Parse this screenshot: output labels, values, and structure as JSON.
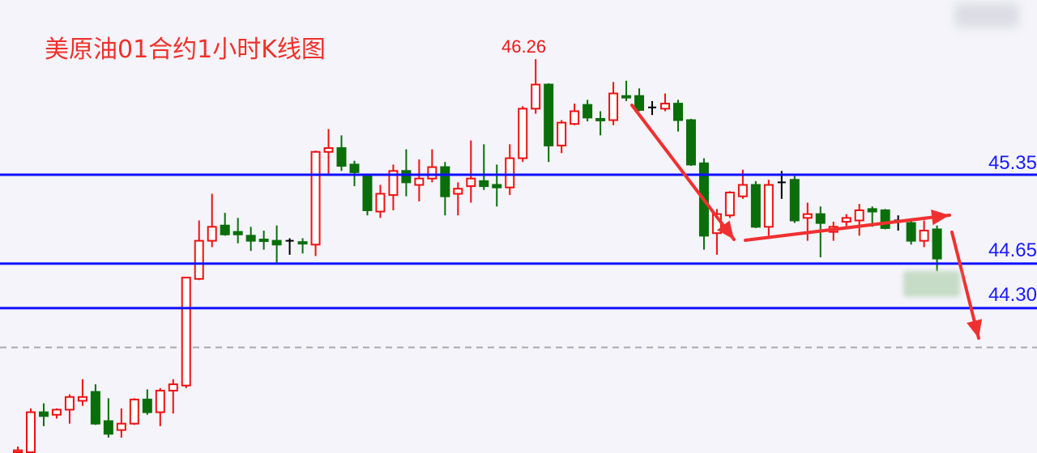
{
  "chart_data": {
    "type": "candlestick",
    "title": "美原油01合约1小时K线图",
    "annotations": {
      "high_label": "46.26"
    },
    "colors": {
      "up": "#f01010",
      "down": "#0a6e0a",
      "flat": "#000000",
      "level_line": "#1010ff",
      "arrow": "#f03030",
      "dashed_line": "#aaaaaa"
    },
    "levels": [
      {
        "value": 45.35,
        "label": "45.35"
      },
      {
        "value": 44.65,
        "label": "44.65"
      },
      {
        "value": 44.3,
        "label": "44.30"
      }
    ],
    "dashed_line": 43.99,
    "grid": false,
    "candles": [
      [
        43.13,
        43.21,
        43.1,
        43.18
      ],
      [
        43.03,
        43.51,
        42.97,
        43.48
      ],
      [
        43.48,
        43.55,
        43.37,
        43.45
      ],
      [
        43.46,
        43.51,
        43.43,
        43.5
      ],
      [
        43.5,
        43.62,
        43.39,
        43.6
      ],
      [
        43.57,
        43.74,
        43.53,
        43.6
      ],
      [
        43.64,
        43.7,
        43.38,
        43.39
      ],
      [
        43.41,
        43.59,
        43.28,
        43.31
      ],
      [
        43.34,
        43.51,
        43.28,
        43.39
      ],
      [
        43.39,
        43.59,
        43.38,
        43.58
      ],
      [
        43.58,
        43.66,
        43.46,
        43.48
      ],
      [
        43.48,
        43.67,
        43.37,
        43.65
      ],
      [
        43.65,
        43.74,
        43.47,
        43.7
      ],
      [
        43.69,
        44.54,
        43.67,
        44.54
      ],
      [
        44.53,
        44.99,
        44.52,
        44.83
      ],
      [
        44.83,
        45.2,
        44.78,
        44.94
      ],
      [
        44.95,
        45.05,
        44.87,
        44.88
      ],
      [
        44.9,
        45.01,
        44.81,
        44.88
      ],
      [
        44.87,
        44.94,
        44.75,
        44.83
      ],
      [
        44.84,
        44.91,
        44.76,
        44.83
      ],
      [
        44.83,
        44.95,
        44.66,
        44.8
      ],
      [
        44.83,
        44.85,
        44.72,
        44.83
      ],
      [
        44.82,
        44.85,
        44.73,
        44.81
      ],
      [
        44.8,
        45.54,
        44.71,
        45.53
      ],
      [
        45.53,
        45.71,
        45.36,
        45.56
      ],
      [
        45.56,
        45.66,
        45.38,
        45.42
      ],
      [
        45.43,
        45.46,
        45.26,
        45.37
      ],
      [
        45.34,
        45.36,
        45.03,
        45.07
      ],
      [
        45.06,
        45.27,
        45.01,
        45.2
      ],
      [
        45.19,
        45.43,
        45.07,
        45.38
      ],
      [
        45.38,
        45.55,
        45.18,
        45.29
      ],
      [
        45.27,
        45.47,
        45.14,
        45.32
      ],
      [
        45.32,
        45.55,
        45.29,
        45.41
      ],
      [
        45.41,
        45.45,
        45.03,
        45.18
      ],
      [
        45.2,
        45.29,
        45.03,
        45.24
      ],
      [
        45.26,
        45.62,
        45.13,
        45.32
      ],
      [
        45.3,
        45.59,
        45.23,
        45.26
      ],
      [
        45.27,
        45.43,
        45.1,
        45.25
      ],
      [
        45.25,
        45.59,
        45.19,
        45.48
      ],
      [
        45.48,
        45.89,
        45.45,
        45.87
      ],
      [
        45.87,
        46.26,
        45.83,
        46.06
      ],
      [
        46.06,
        46.07,
        45.45,
        45.58
      ],
      [
        45.58,
        45.78,
        45.52,
        45.76
      ],
      [
        45.75,
        45.91,
        45.74,
        45.85
      ],
      [
        45.9,
        45.94,
        45.77,
        45.8
      ],
      [
        45.79,
        45.85,
        45.66,
        45.78
      ],
      [
        45.78,
        46.08,
        45.74,
        45.99
      ],
      [
        45.97,
        46.09,
        45.93,
        45.96
      ],
      [
        45.97,
        46.03,
        45.85,
        45.86
      ],
      [
        45.88,
        45.93,
        45.82,
        45.88
      ],
      [
        45.87,
        45.99,
        45.85,
        45.91
      ],
      [
        45.91,
        45.94,
        45.69,
        45.78
      ],
      [
        45.78,
        45.79,
        45.42,
        45.43
      ],
      [
        45.44,
        45.48,
        44.76,
        44.87
      ],
      [
        44.89,
        45.08,
        44.72,
        45.04
      ],
      [
        45.03,
        45.22,
        45.01,
        45.21
      ],
      [
        45.18,
        45.39,
        45.16,
        45.27
      ],
      [
        45.27,
        45.3,
        44.93,
        44.94
      ],
      [
        44.94,
        45.31,
        44.87,
        45.27
      ],
      [
        45.29,
        45.38,
        45.16,
        45.29
      ],
      [
        45.31,
        45.34,
        44.97,
        44.99
      ],
      [
        45.01,
        45.13,
        44.83,
        45.04
      ],
      [
        45.04,
        45.1,
        44.7,
        44.97
      ],
      [
        44.9,
        44.98,
        44.83,
        44.94
      ],
      [
        44.98,
        45.04,
        44.94,
        45.01
      ],
      [
        44.99,
        45.12,
        44.87,
        45.07
      ],
      [
        45.08,
        45.1,
        44.94,
        45.06
      ],
      [
        45.07,
        45.08,
        44.92,
        44.93
      ],
      [
        44.99,
        45.03,
        44.91,
        44.99
      ],
      [
        44.97,
        44.99,
        44.8,
        44.83
      ],
      [
        44.83,
        44.99,
        44.78,
        44.91
      ],
      [
        44.92,
        44.95,
        44.59,
        44.69
      ]
    ],
    "candle_fields": [
      "open",
      "high",
      "low",
      "close"
    ],
    "ylim": [
      43.16,
      46.73
    ]
  }
}
